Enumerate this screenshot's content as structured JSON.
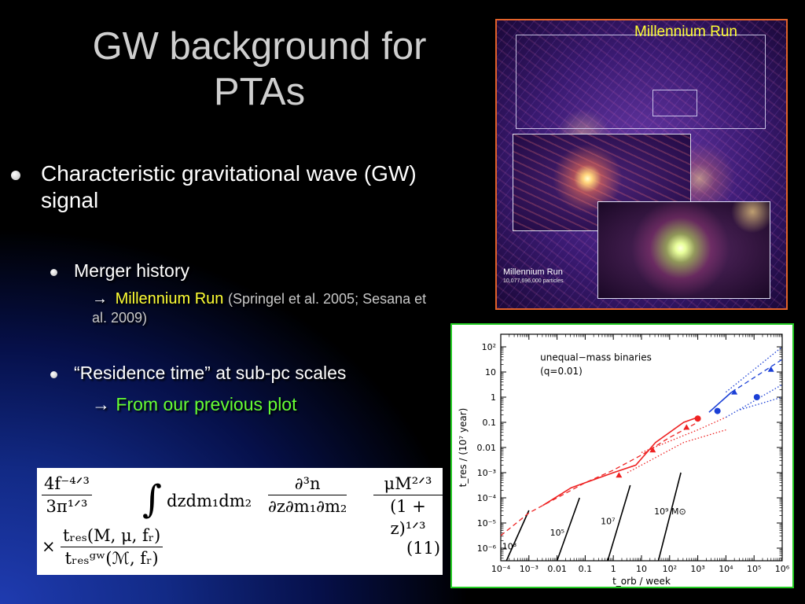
{
  "slide": {
    "title_line1": "GW background for",
    "title_line2": "PTAs"
  },
  "bullets": {
    "b1": "Characteristic gravitational wave (GW) signal",
    "b2": "Merger history",
    "b2_sub_arrow": "→",
    "b2_sub_highlight": "Millennium Run",
    "b2_sub_ref": "(Springel et al. 2005; Sesana et al. 2009)",
    "b3": "“Residence time” at sub-pc scales",
    "b3_sub_arrow": "→",
    "b3_sub_highlight": "From our previous plot"
  },
  "millennium_image": {
    "top_label": "Millennium Run",
    "bottom_label": "Millennium Run",
    "bottom_sub": "10,077,696,000 particles",
    "accent_border": "#e2622a"
  },
  "equation": {
    "f1_num": "4f⁻⁴ᐟ³",
    "f1_den": "3π¹ᐟ³",
    "integral": "∫",
    "measure": "dzdm₁dm₂",
    "f2_num": "∂³n",
    "f2_den": "∂z∂m₁∂m₂",
    "f3_num": "μM²ᐟ³",
    "f3_den": "(1 + z)¹ᐟ³",
    "times": "×",
    "f4_num": "tᵣₑₛ(M, μ, fᵣ)",
    "f4_den": "tᵣₑₛᵍʷ(ℳ, fᵣ)",
    "number": "(11)"
  },
  "chart_data": {
    "type": "line",
    "title": "",
    "annotation": "unequal−mass binaries",
    "annotation2": "(q=0.01)",
    "xlabel": "t_orb / week",
    "ylabel": "t_res / (10⁷ year)",
    "xscale": "log",
    "yscale": "log",
    "xlim_log10": [
      -4,
      6
    ],
    "ylim_log10": [
      -6.5,
      2.5
    ],
    "x_ticks": [
      "10⁻⁴",
      "10⁻³",
      "0.01",
      "0.1",
      "1",
      "10",
      "10²",
      "10³",
      "10⁴",
      "10⁵",
      "10⁶"
    ],
    "y_ticks": [
      "10²",
      "10",
      "1",
      "0.1",
      "0.01",
      "10⁻³",
      "10⁻⁴",
      "10⁻⁵",
      "10⁻⁶"
    ],
    "mass_labels": [
      "10³",
      "10⁵",
      "10⁷",
      "10⁹ M⊙"
    ],
    "colors": {
      "red": "#ee2222",
      "blue": "#1a3fd6",
      "black": "#000000"
    },
    "series": [
      {
        "color": "black",
        "style": "solid",
        "points": [
          [
            -3.8,
            -6.5
          ],
          [
            -3.0,
            -4.5
          ]
        ]
      },
      {
        "color": "black",
        "style": "solid",
        "points": [
          [
            -2.0,
            -6.5
          ],
          [
            -1.2,
            -4.0
          ]
        ]
      },
      {
        "color": "black",
        "style": "solid",
        "points": [
          [
            -0.2,
            -6.5
          ],
          [
            0.6,
            -3.5
          ]
        ]
      },
      {
        "color": "black",
        "style": "solid",
        "points": [
          [
            1.6,
            -6.5
          ],
          [
            2.4,
            -3.0
          ]
        ]
      },
      {
        "color": "red",
        "style": "dashed",
        "points": [
          [
            -4.0,
            -5.5
          ],
          [
            -3.0,
            -4.6
          ],
          [
            -2.0,
            -4.0
          ],
          [
            -1.0,
            -3.4
          ],
          [
            0.0,
            -2.9
          ],
          [
            1.0,
            -2.3
          ],
          [
            2.0,
            -1.6
          ],
          [
            3.0,
            -1.0
          ]
        ]
      },
      {
        "color": "red",
        "style": "solid",
        "points": [
          [
            -2.5,
            -4.3
          ],
          [
            -1.5,
            -3.6
          ],
          [
            0.0,
            -3.0
          ],
          [
            0.8,
            -2.7
          ],
          [
            1.5,
            -1.8
          ],
          [
            2.5,
            -1.0
          ],
          [
            3.0,
            -0.8
          ]
        ]
      },
      {
        "color": "red",
        "style": "dotted",
        "points": [
          [
            1.0,
            -2.2
          ],
          [
            3.0,
            -1.3
          ],
          [
            4.0,
            -0.8
          ]
        ]
      },
      {
        "color": "red",
        "style": "dotted",
        "points": [
          [
            0.5,
            -3.0
          ],
          [
            2.5,
            -1.8
          ],
          [
            4.0,
            -1.3
          ]
        ]
      },
      {
        "color": "blue",
        "style": "solid",
        "points": [
          [
            3.4,
            -0.6
          ],
          [
            4.2,
            0.2
          ]
        ]
      },
      {
        "color": "blue",
        "style": "dashed",
        "points": [
          [
            4.2,
            0.2
          ],
          [
            6.0,
            1.5
          ]
        ]
      },
      {
        "color": "blue",
        "style": "dotted",
        "points": [
          [
            4.0,
            -0.8
          ],
          [
            6.0,
            0.5
          ]
        ]
      },
      {
        "color": "blue",
        "style": "dotted",
        "points": [
          [
            4.5,
            -0.5
          ],
          [
            6.0,
            0.0
          ]
        ]
      },
      {
        "color": "blue",
        "style": "dotted",
        "points": [
          [
            4.0,
            0.2
          ],
          [
            6.0,
            2.0
          ]
        ]
      }
    ],
    "markers": [
      {
        "color": "red",
        "shape": "circle",
        "x": 3.0,
        "y": -0.85
      },
      {
        "color": "blue",
        "shape": "circle",
        "x": 3.7,
        "y": -0.55
      },
      {
        "color": "blue",
        "shape": "circle",
        "x": 5.1,
        "y": 0.0
      },
      {
        "color": "blue",
        "shape": "triangle",
        "x": 4.3,
        "y": 0.2
      },
      {
        "color": "blue",
        "shape": "triangle",
        "x": 5.6,
        "y": 1.1
      },
      {
        "color": "red",
        "shape": "triangle",
        "x": 2.6,
        "y": -1.2
      },
      {
        "color": "red",
        "shape": "triangle",
        "x": 1.4,
        "y": -2.1
      },
      {
        "color": "red",
        "shape": "triangle",
        "x": 0.2,
        "y": -3.1
      }
    ]
  }
}
